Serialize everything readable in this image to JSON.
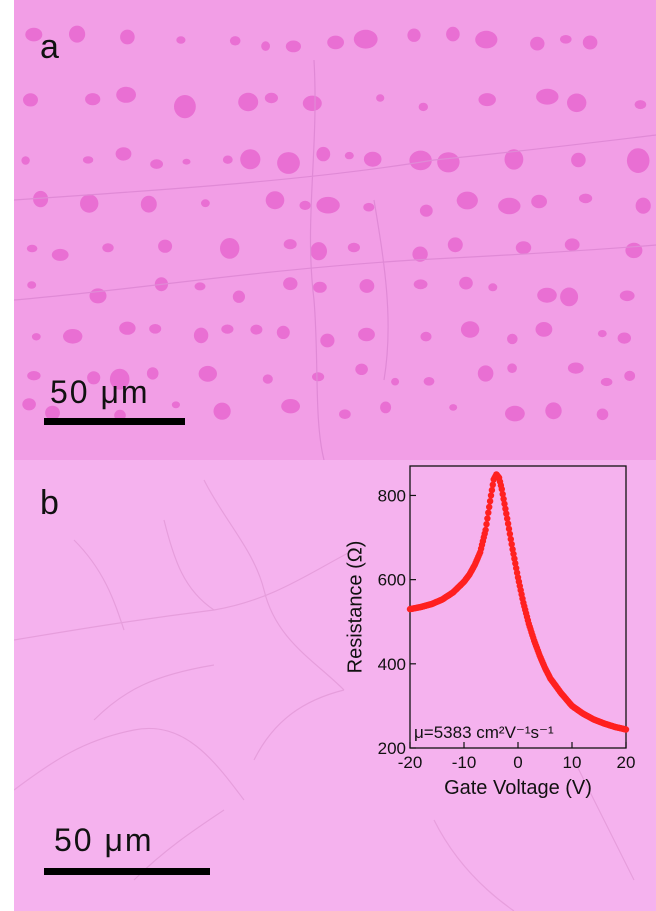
{
  "panels": {
    "a": {
      "label": "a",
      "scale_bar": "50  μm"
    },
    "b": {
      "label": "b",
      "scale_bar": "50  μm"
    }
  },
  "colors": {
    "background_a": "#f29ee6",
    "background_b": "#f5b2ee",
    "islands": "#e96fd3",
    "curve": "#ff2020"
  },
  "chart_data": {
    "type": "scatter",
    "xlabel": "Gate Voltage (V)",
    "ylabel": "Resistance (Ω)",
    "xlim": [
      -20,
      20
    ],
    "ylim": [
      200,
      870
    ],
    "xticks": [
      -20,
      -10,
      0,
      10,
      20
    ],
    "yticks": [
      200,
      400,
      600,
      800
    ],
    "annotation": "μ=5383 cm²V⁻¹s⁻¹",
    "series": [
      {
        "x": [
          -20,
          -18,
          -16,
          -14,
          -12,
          -10,
          -9,
          -8,
          -7,
          -6,
          -5,
          -4.5,
          -4,
          -3.5,
          -3,
          -2,
          -1,
          0,
          1,
          2,
          3,
          4,
          5,
          6,
          8,
          10,
          12,
          14,
          16,
          18,
          20
        ],
        "values": [
          530,
          535,
          542,
          553,
          570,
          595,
          612,
          635,
          665,
          718,
          800,
          838,
          850,
          842,
          815,
          745,
          672,
          605,
          545,
          495,
          455,
          420,
          390,
          365,
          330,
          300,
          282,
          268,
          258,
          250,
          244
        ]
      }
    ]
  }
}
